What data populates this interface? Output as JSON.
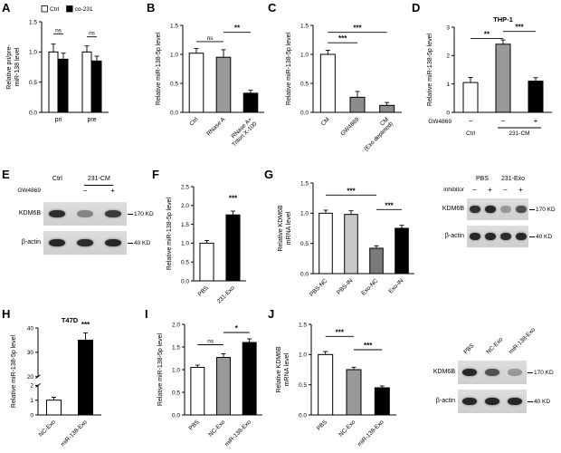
{
  "figure": {
    "background": "#ffffff"
  },
  "panel_letters": [
    "A",
    "B",
    "C",
    "D",
    "E",
    "F",
    "G",
    "H",
    "I",
    "J"
  ],
  "chart_data": [
    {
      "panel": "A",
      "type": "bar",
      "ylabel": [
        "Relative pri/pre-",
        "miR-138 level"
      ],
      "ylim": [
        0,
        1.5
      ],
      "yticks": [
        0,
        0.5,
        1,
        1.5
      ],
      "ytick_labels": [
        "0.0",
        "0.5",
        "1.0",
        "1.5"
      ],
      "categories": [
        "pri",
        "pre"
      ],
      "series": [
        {
          "name": "Ctrl",
          "color": "#ffffff",
          "values": [
            1.0,
            1.0
          ],
          "errors": [
            0.13,
            0.1
          ]
        },
        {
          "name": "co-231",
          "color": "#000000",
          "values": [
            0.88,
            0.85
          ],
          "errors": [
            0.1,
            0.08
          ]
        }
      ],
      "legend": [
        {
          "label": "Ctrl",
          "color": "#ffffff"
        },
        {
          "label": "co-231",
          "color": "#000000"
        }
      ],
      "annotations": [
        {
          "i1": 0,
          "i2": 1,
          "y": 1.3,
          "text": "ns"
        },
        {
          "i1": 2,
          "i2": 3,
          "y": 1.25,
          "text": "ns"
        }
      ]
    },
    {
      "panel": "B",
      "type": "bar",
      "ylabel": [
        "Relative miR-138-5p level"
      ],
      "ylim": [
        0,
        1.5
      ],
      "yticks": [
        0,
        0.5,
        1,
        1.5
      ],
      "ytick_labels": [
        "0.0",
        "0.5",
        "1.0",
        "1.5"
      ],
      "categories": [
        "Ctrl",
        "RNase A",
        "RNase A+\nTriton X-100"
      ],
      "values": [
        1.02,
        0.95,
        0.33
      ],
      "errors": [
        0.08,
        0.13,
        0.05
      ],
      "colors": [
        "#ffffff",
        "#999999",
        "#000000"
      ],
      "annotations": [
        {
          "i1": 0,
          "i2": 1,
          "y": 1.22,
          "text": "ns"
        },
        {
          "i1": 1,
          "i2": 2,
          "y": 1.38,
          "text": "**"
        }
      ]
    },
    {
      "panel": "C",
      "type": "bar",
      "ylabel": [
        "Relative miR-138-5p level"
      ],
      "ylim": [
        0,
        1.5
      ],
      "yticks": [
        0,
        0.5,
        1,
        1.5
      ],
      "ytick_labels": [
        "0.0",
        "0.5",
        "1.0",
        "1.5"
      ],
      "categories": [
        "CM",
        "GW4869",
        "CM\n(Exo depleted)"
      ],
      "values": [
        1.0,
        0.26,
        0.12
      ],
      "errors": [
        0.07,
        0.1,
        0.05
      ],
      "colors": [
        "#ffffff",
        "#8c8c8c",
        "#8c8c8c"
      ],
      "annotations": [
        {
          "i1": 0,
          "i2": 1,
          "y": 1.2,
          "text": "***"
        },
        {
          "i1": 0,
          "i2": 2,
          "y": 1.38,
          "text": "***"
        }
      ]
    },
    {
      "panel": "D",
      "type": "bar",
      "title": "THP-1",
      "ylabel": [
        "Relative miR-138-5p level"
      ],
      "ylim": [
        0,
        3
      ],
      "yticks": [
        0,
        1,
        2,
        3
      ],
      "ytick_labels": [
        "0",
        "1",
        "2",
        "3"
      ],
      "values": [
        1.05,
        2.4,
        1.1
      ],
      "errors": [
        0.18,
        0.15,
        0.12
      ],
      "colors": [
        "#ffffff",
        "#999999",
        "#000000"
      ],
      "annotations": [
        {
          "i1": 0,
          "i2": 1,
          "y": 2.6,
          "text": "**"
        },
        {
          "i1": 1,
          "i2": 2,
          "y": 2.85,
          "text": "***"
        }
      ],
      "xaxis_extra": {
        "row_label": "GW4869",
        "row_values": [
          "−",
          "−",
          "+"
        ],
        "groups": [
          {
            "label": "Ctrl",
            "from": 0,
            "to": 0,
            "overline": false
          },
          {
            "label": "231-CM",
            "from": 1,
            "to": 2,
            "overline": true
          }
        ]
      }
    },
    {
      "panel": "F",
      "type": "bar",
      "ylabel": [
        "Relative miR-138-5p level"
      ],
      "ylim": [
        0,
        2.5
      ],
      "yticks": [
        0,
        0.5,
        1,
        1.5,
        2,
        2.5
      ],
      "ytick_labels": [
        "0.0",
        "0.5",
        "1.0",
        "1.5",
        "2.0",
        "2.5"
      ],
      "categories": [
        "PBS",
        "231-Exo"
      ],
      "values": [
        1.0,
        1.75
      ],
      "errors": [
        0.07,
        0.1
      ],
      "colors": [
        "#ffffff",
        "#000000"
      ],
      "annotations": [
        {
          "i1": 1,
          "i2": 1,
          "y": 2.08,
          "text": "***"
        }
      ]
    },
    {
      "panel": "G",
      "type": "bar",
      "ylabel": [
        "Relative KDM6B",
        "mRNA level"
      ],
      "ylim": [
        0,
        1.5
      ],
      "yticks": [
        0,
        0.5,
        1,
        1.5
      ],
      "ytick_labels": [
        "0.0",
        "0.5",
        "1.0",
        "1.5"
      ],
      "categories": [
        "PBS-NC",
        "PBS-IN",
        "Exo-NC",
        "Exo-IN"
      ],
      "values": [
        1.0,
        0.98,
        0.42,
        0.75
      ],
      "errors": [
        0.05,
        0.06,
        0.04,
        0.05
      ],
      "colors": [
        "#ffffff",
        "#c8c8c8",
        "#7a7a7a",
        "#000000"
      ],
      "annotations": [
        {
          "i1": 0,
          "i2": 2,
          "y": 1.3,
          "text": "***"
        },
        {
          "i1": 2,
          "i2": 3,
          "y": 1.06,
          "text": "***"
        }
      ]
    },
    {
      "panel": "H",
      "type": "bar",
      "title": "T47D",
      "ylabel": [
        "Relative miR-138-5p level"
      ],
      "ybreak": {
        "low_max": 2,
        "high_min": 20,
        "high_max": 40,
        "low_ticks": [
          0,
          1,
          2
        ],
        "low_tick_labels": [
          "0",
          "1",
          "2"
        ],
        "high_ticks": [
          20,
          30,
          40
        ],
        "high_tick_labels": [
          "20",
          "30",
          "40"
        ]
      },
      "categories": [
        "NC-Exo",
        "miR-138-Exo"
      ],
      "values": [
        1.0,
        35
      ],
      "errors": [
        0.2,
        3
      ],
      "colors": [
        "#ffffff",
        "#000000"
      ],
      "annotations": [
        {
          "i1": 1,
          "i2": 1,
          "y": 39.6,
          "text": "***"
        }
      ]
    },
    {
      "panel": "I",
      "type": "bar",
      "ylabel": [
        "Relative miR-138-5p level"
      ],
      "ylim": [
        0,
        2
      ],
      "yticks": [
        0,
        0.5,
        1,
        1.5,
        2
      ],
      "ytick_labels": [
        "0.0",
        "0.5",
        "1.0",
        "1.5",
        "2.0"
      ],
      "categories": [
        "PBS",
        "NC-Exo",
        "miR-138-Exo"
      ],
      "values": [
        1.05,
        1.27,
        1.6
      ],
      "errors": [
        0.05,
        0.08,
        0.08
      ],
      "colors": [
        "#ffffff",
        "#999999",
        "#000000"
      ],
      "annotations": [
        {
          "i1": 0,
          "i2": 1,
          "y": 1.55,
          "text": "ns"
        },
        {
          "i1": 1,
          "i2": 2,
          "y": 1.82,
          "text": "*"
        }
      ]
    },
    {
      "panel": "J",
      "type": "bar",
      "ylabel": [
        "Relative KDM6B",
        "mRNA level"
      ],
      "ylim": [
        0,
        1.5
      ],
      "yticks": [
        0,
        0.5,
        1,
        1.5
      ],
      "ytick_labels": [
        "0.0",
        "0.5",
        "1.0",
        "1.5"
      ],
      "categories": [
        "PBS",
        "NC-Exo",
        "miR-138-Exo"
      ],
      "values": [
        1.0,
        0.75,
        0.45
      ],
      "errors": [
        0.05,
        0.04,
        0.03
      ],
      "colors": [
        "#ffffff",
        "#999999",
        "#000000"
      ],
      "annotations": [
        {
          "i1": 0,
          "i2": 1,
          "y": 1.3,
          "text": "***"
        },
        {
          "i1": 1,
          "i2": 2,
          "y": 1.08,
          "text": "***"
        }
      ]
    }
  ],
  "blots": [
    {
      "panel": "E",
      "col_groups": [
        {
          "label": "Ctrl",
          "lanes": [
            0
          ],
          "underline": false
        },
        {
          "label": "231-CM",
          "lanes": [
            1,
            2
          ],
          "underline": true
        }
      ],
      "treatment": {
        "label": "GW4869",
        "values": [
          "",
          "−",
          "+"
        ]
      },
      "rows": [
        {
          "label": "KDM6B",
          "marker": "170 KD",
          "bands": [
            0.88,
            0.42,
            0.8
          ]
        },
        {
          "label": "β-actin",
          "marker": "40 KD",
          "bands": [
            0.9,
            0.88,
            0.9
          ]
        }
      ]
    },
    {
      "panel": "G",
      "col_groups": [
        {
          "label": "PBS",
          "lanes": [
            0,
            1
          ],
          "underline": false
        },
        {
          "label": "231-Exo",
          "lanes": [
            2,
            3
          ],
          "underline": false
        }
      ],
      "treatment": {
        "label": "inhibitor",
        "values": [
          "−",
          "+",
          "−",
          "+"
        ]
      },
      "rows": [
        {
          "label": "KDM6B",
          "marker": "170 KD",
          "bands": [
            0.85,
            0.9,
            0.32,
            0.7
          ]
        },
        {
          "label": "β-actin",
          "marker": "40 KD",
          "bands": [
            0.9,
            0.9,
            0.88,
            0.9
          ]
        }
      ]
    },
    {
      "panel": "J",
      "lane_labels": [
        "PBS",
        "NC-Exo",
        "miR-138-Exo"
      ],
      "rows": [
        {
          "label": "KDM6B",
          "marker": "170 KD",
          "bands": [
            0.9,
            0.68,
            0.32
          ]
        },
        {
          "label": "β-actin",
          "marker": "40 KD",
          "bands": [
            0.9,
            0.9,
            0.9
          ]
        }
      ]
    }
  ]
}
